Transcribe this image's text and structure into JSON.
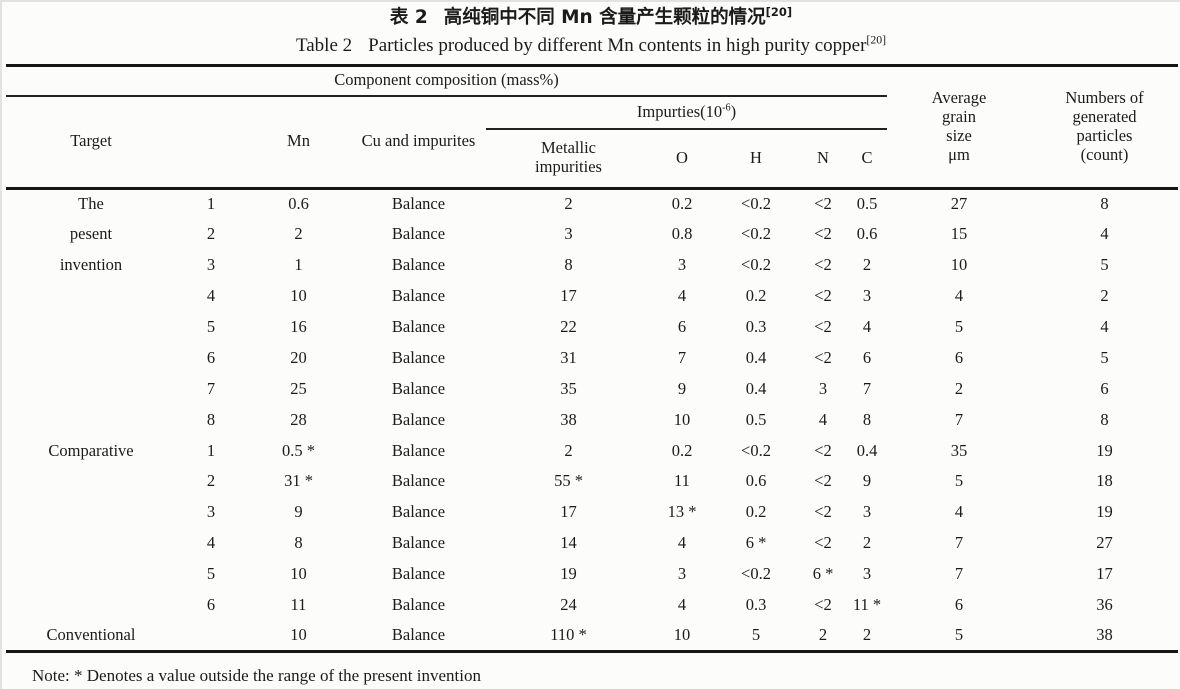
{
  "page": {
    "title_zh": {
      "prefix": "表 2",
      "text": "高纯铜中不同 Mn 含量产生颗粒的情况",
      "sup": "[20]"
    },
    "title_en": {
      "prefix": "Table 2",
      "text": "Particles produced by different Mn contents in high purity copper",
      "sup": "[20]"
    },
    "note": "Note: *  Denotes a value outside the range of the present invention"
  },
  "table": {
    "header": {
      "component_composition": "Component composition (mass%)",
      "target": "Target",
      "row_number": "",
      "mn": "Mn",
      "cu": "Cu and impurites",
      "impurities_group": {
        "base": "Impurties(10",
        "sup": "-6",
        "close": ")"
      },
      "metallic": [
        "Metallic",
        "impurities"
      ],
      "o": "O",
      "h": "H",
      "n": "N",
      "c": "C",
      "grain": [
        "Average",
        "grain",
        "size",
        "μm"
      ],
      "particles": [
        "Numbers of",
        "generated",
        "particles",
        "(count)"
      ]
    },
    "rows": [
      [
        "The",
        "1",
        "0.6",
        "Balance",
        "2",
        "0.2",
        "<0.2",
        "<2",
        "0.5",
        "27",
        "8"
      ],
      [
        "pesent",
        "2",
        "2",
        "Balance",
        "3",
        "0.8",
        "<0.2",
        "<2",
        "0.6",
        "15",
        "4"
      ],
      [
        "invention",
        "3",
        "1",
        "Balance",
        "8",
        "3",
        "<0.2",
        "<2",
        "2",
        "10",
        "5"
      ],
      [
        "",
        "4",
        "10",
        "Balance",
        "17",
        "4",
        "0.2",
        "<2",
        "3",
        "4",
        "2"
      ],
      [
        "",
        "5",
        "16",
        "Balance",
        "22",
        "6",
        "0.3",
        "<2",
        "4",
        "5",
        "4"
      ],
      [
        "",
        "6",
        "20",
        "Balance",
        "31",
        "7",
        "0.4",
        "<2",
        "6",
        "6",
        "5"
      ],
      [
        "",
        "7",
        "25",
        "Balance",
        "35",
        "9",
        "0.4",
        "3",
        "7",
        "2",
        "6"
      ],
      [
        "",
        "8",
        "28",
        "Balance",
        "38",
        "10",
        "0.5",
        "4",
        "8",
        "7",
        "8"
      ],
      [
        "Comparative",
        "1",
        "0.5 *",
        "Balance",
        "2",
        "0.2",
        "<0.2",
        "<2",
        "0.4",
        "35",
        "19"
      ],
      [
        "",
        "2",
        "31 *",
        "Balance",
        "55 *",
        "11",
        "0.6",
        "<2",
        "9",
        "5",
        "18"
      ],
      [
        "",
        "3",
        "9",
        "Balance",
        "17",
        "13 *",
        "0.2",
        "<2",
        "3",
        "4",
        "19"
      ],
      [
        "",
        "4",
        "8",
        "Balance",
        "14",
        "4",
        "6 *",
        "<2",
        "2",
        "7",
        "27"
      ],
      [
        "",
        "5",
        "10",
        "Balance",
        "19",
        "3",
        "<0.2",
        "6 *",
        "3",
        "7",
        "17"
      ],
      [
        "",
        "6",
        "11",
        "Balance",
        "24",
        "4",
        "0.3",
        "<2",
        "11 *",
        "6",
        "36"
      ],
      [
        "Conventional",
        "",
        "10",
        "Balance",
        "110 *",
        "10",
        "5",
        "2",
        "2",
        "5",
        "38"
      ]
    ]
  }
}
